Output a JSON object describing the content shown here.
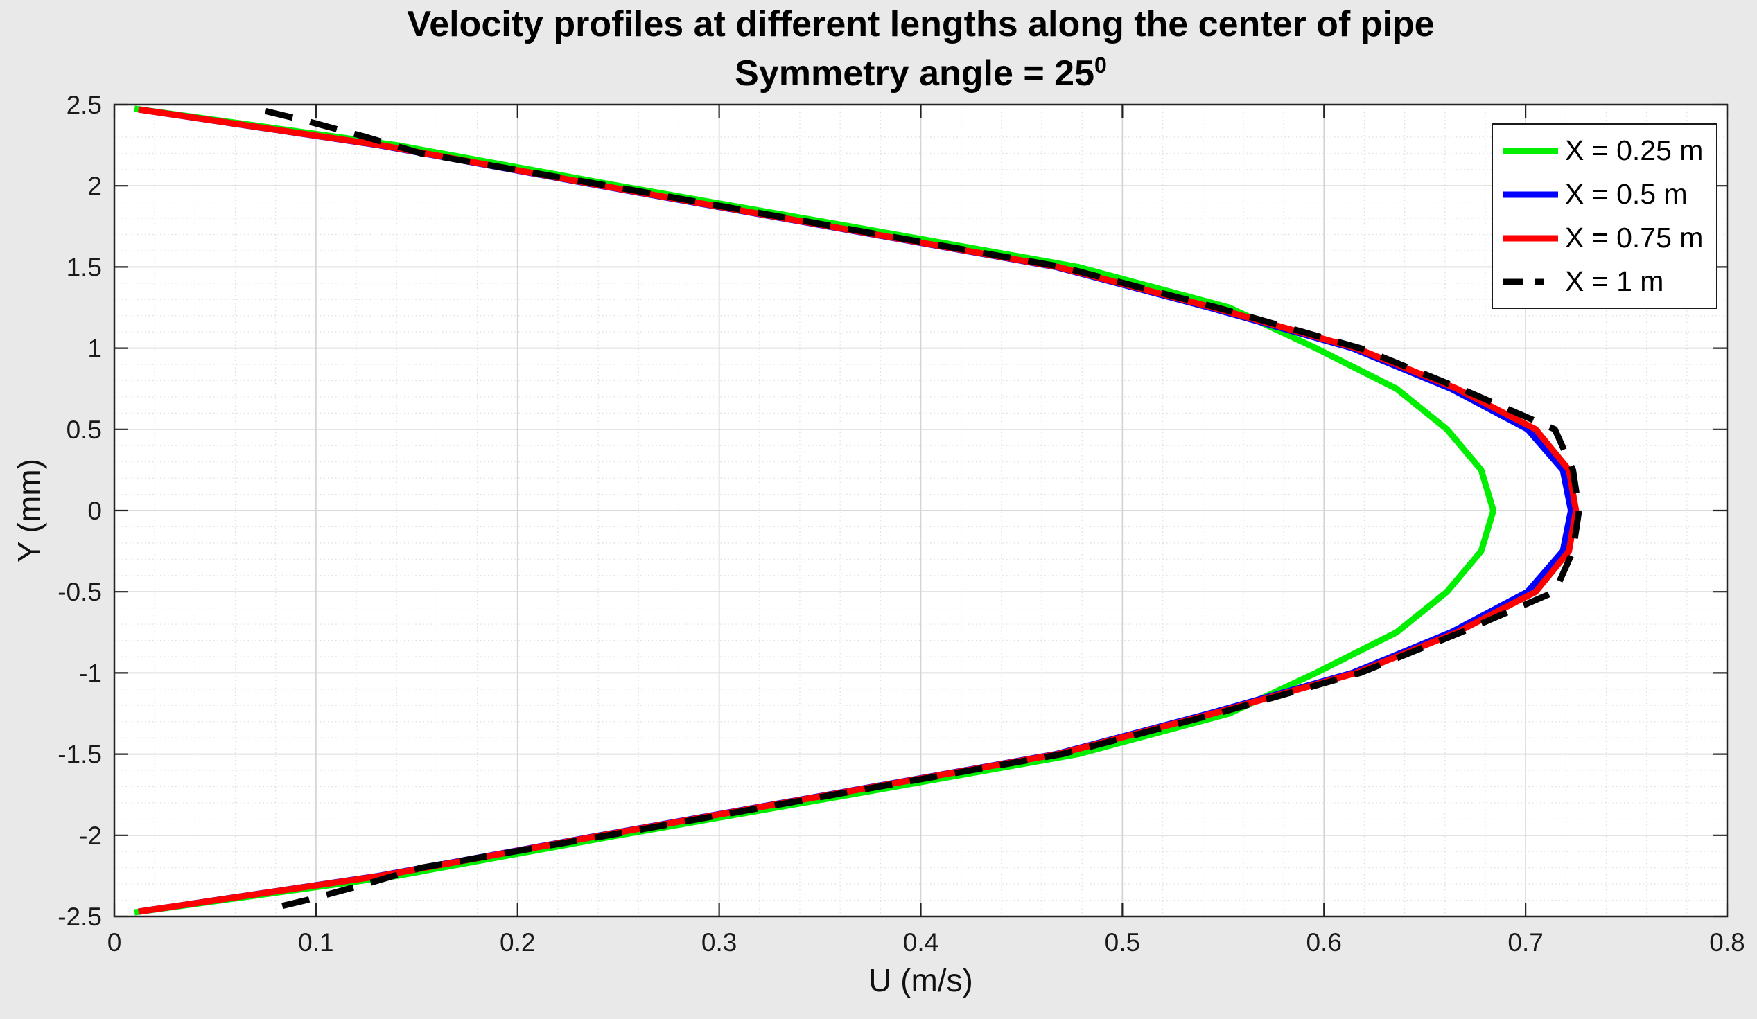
{
  "figure": {
    "title": "Velocity profiles at different lengths along the center of pipe",
    "subtitle_base": "Symmetry angle = 25",
    "subtitle_superscript": "0",
    "background_color": "#e9e9e9"
  },
  "chart_data": {
    "type": "line",
    "title": "Velocity profiles at different lengths along the center of pipe",
    "subtitle": "Symmetry angle = 25^0",
    "xlabel": "U (m/s)",
    "ylabel": "Y (mm)",
    "xlim": [
      0,
      0.8
    ],
    "ylim": [
      -2.5,
      2.5
    ],
    "x_ticks": [
      0,
      0.1,
      0.2,
      0.3,
      0.4,
      0.5,
      0.6,
      0.7,
      0.8
    ],
    "x_tick_labels": [
      "0",
      "0.1",
      "0.2",
      "0.3",
      "0.4",
      "0.5",
      "0.6",
      "0.7",
      "0.8"
    ],
    "y_ticks": [
      2.5,
      2,
      1.5,
      1,
      0.5,
      0,
      -0.5,
      -1,
      -1.5,
      -2,
      -2.5
    ],
    "y_tick_labels": [
      "2.5",
      "2",
      "1.5",
      "1",
      "0.5",
      "0",
      "-0.5",
      "-1",
      "-1.5",
      "-2",
      "-2.5"
    ],
    "x_minor_step": 0.02,
    "y_minor_step": 0.1,
    "grid": "major-solid-minor-dotted",
    "legend_position": "top-right",
    "colors": {
      "figure_background": "#e9e9e9",
      "plot_background": "#ffffff",
      "major_grid": "#d4d4d4",
      "minor_grid": "#dedede",
      "axis_box": "#222222"
    },
    "series": [
      {
        "name": "X = 0.25 m",
        "color": "#00ee00",
        "line_style": "solid",
        "points": [
          [
            0.01,
            2.475
          ],
          [
            0.14,
            2.25
          ],
          [
            0.25,
            2.0
          ],
          [
            0.365,
            1.75
          ],
          [
            0.478,
            1.5
          ],
          [
            0.553,
            1.25
          ],
          [
            0.596,
            1.0
          ],
          [
            0.636,
            0.75
          ],
          [
            0.661,
            0.5
          ],
          [
            0.678,
            0.25
          ],
          [
            0.684,
            0
          ],
          [
            0.678,
            -0.25
          ],
          [
            0.661,
            -0.5
          ],
          [
            0.636,
            -0.75
          ],
          [
            0.596,
            -1.0
          ],
          [
            0.553,
            -1.25
          ],
          [
            0.478,
            -1.5
          ],
          [
            0.365,
            -1.75
          ],
          [
            0.25,
            -2.0
          ],
          [
            0.14,
            -2.25
          ],
          [
            0.01,
            -2.475
          ]
        ]
      },
      {
        "name": "X = 0.5 m",
        "color": "#0000ff",
        "line_style": "solid",
        "points": [
          [
            0.012,
            2.47
          ],
          [
            0.131,
            2.25
          ],
          [
            0.241,
            2.0
          ],
          [
            0.354,
            1.75
          ],
          [
            0.467,
            1.5
          ],
          [
            0.543,
            1.25
          ],
          [
            0.614,
            1.0
          ],
          [
            0.663,
            0.75
          ],
          [
            0.701,
            0.5
          ],
          [
            0.7185,
            0.25
          ],
          [
            0.7225,
            0
          ],
          [
            0.7185,
            -0.25
          ],
          [
            0.701,
            -0.5
          ],
          [
            0.663,
            -0.75
          ],
          [
            0.614,
            -1.0
          ],
          [
            0.543,
            -1.25
          ],
          [
            0.467,
            -1.5
          ],
          [
            0.354,
            -1.75
          ],
          [
            0.241,
            -2.0
          ],
          [
            0.131,
            -2.25
          ],
          [
            0.012,
            -2.47
          ]
        ]
      },
      {
        "name": "X = 0.75 m",
        "color": "#ff0000",
        "line_style": "solid",
        "points": [
          [
            0.012,
            2.47
          ],
          [
            0.132,
            2.25
          ],
          [
            0.242,
            2.0
          ],
          [
            0.355,
            1.75
          ],
          [
            0.468,
            1.5
          ],
          [
            0.545,
            1.25
          ],
          [
            0.616,
            1.0
          ],
          [
            0.666,
            0.75
          ],
          [
            0.705,
            0.5
          ],
          [
            0.7215,
            0.25
          ],
          [
            0.725,
            0
          ],
          [
            0.7215,
            -0.25
          ],
          [
            0.705,
            -0.5
          ],
          [
            0.666,
            -0.75
          ],
          [
            0.616,
            -1.0
          ],
          [
            0.545,
            -1.25
          ],
          [
            0.468,
            -1.5
          ],
          [
            0.355,
            -1.75
          ],
          [
            0.242,
            -2.0
          ],
          [
            0.132,
            -2.25
          ],
          [
            0.012,
            -2.47
          ]
        ]
      },
      {
        "name": "X = 1 m",
        "color": "#000000",
        "line_style": "dashed",
        "points": [
          [
            0.075,
            2.46
          ],
          [
            0.095,
            2.4
          ],
          [
            0.125,
            2.3
          ],
          [
            0.152,
            2.2
          ],
          [
            0.245,
            2.0
          ],
          [
            0.357,
            1.75
          ],
          [
            0.47,
            1.5
          ],
          [
            0.547,
            1.25
          ],
          [
            0.618,
            1.0
          ],
          [
            0.668,
            0.75
          ],
          [
            0.7145,
            0.5
          ],
          [
            0.7235,
            0.25
          ],
          [
            0.7265,
            0
          ],
          [
            0.7235,
            -0.25
          ],
          [
            0.7145,
            -0.5
          ],
          [
            0.668,
            -0.75
          ],
          [
            0.618,
            -1.0
          ],
          [
            0.547,
            -1.25
          ],
          [
            0.47,
            -1.5
          ],
          [
            0.357,
            -1.75
          ],
          [
            0.245,
            -2.0
          ],
          [
            0.152,
            -2.2
          ],
          [
            0.125,
            -2.3
          ],
          [
            0.095,
            -2.4
          ],
          [
            0.075,
            -2.46
          ]
        ]
      }
    ]
  },
  "legend": {
    "items": [
      {
        "label": "X = 0.25 m"
      },
      {
        "label": "X = 0.5 m"
      },
      {
        "label": "X = 0.75 m"
      },
      {
        "label": "X = 1 m"
      }
    ]
  }
}
